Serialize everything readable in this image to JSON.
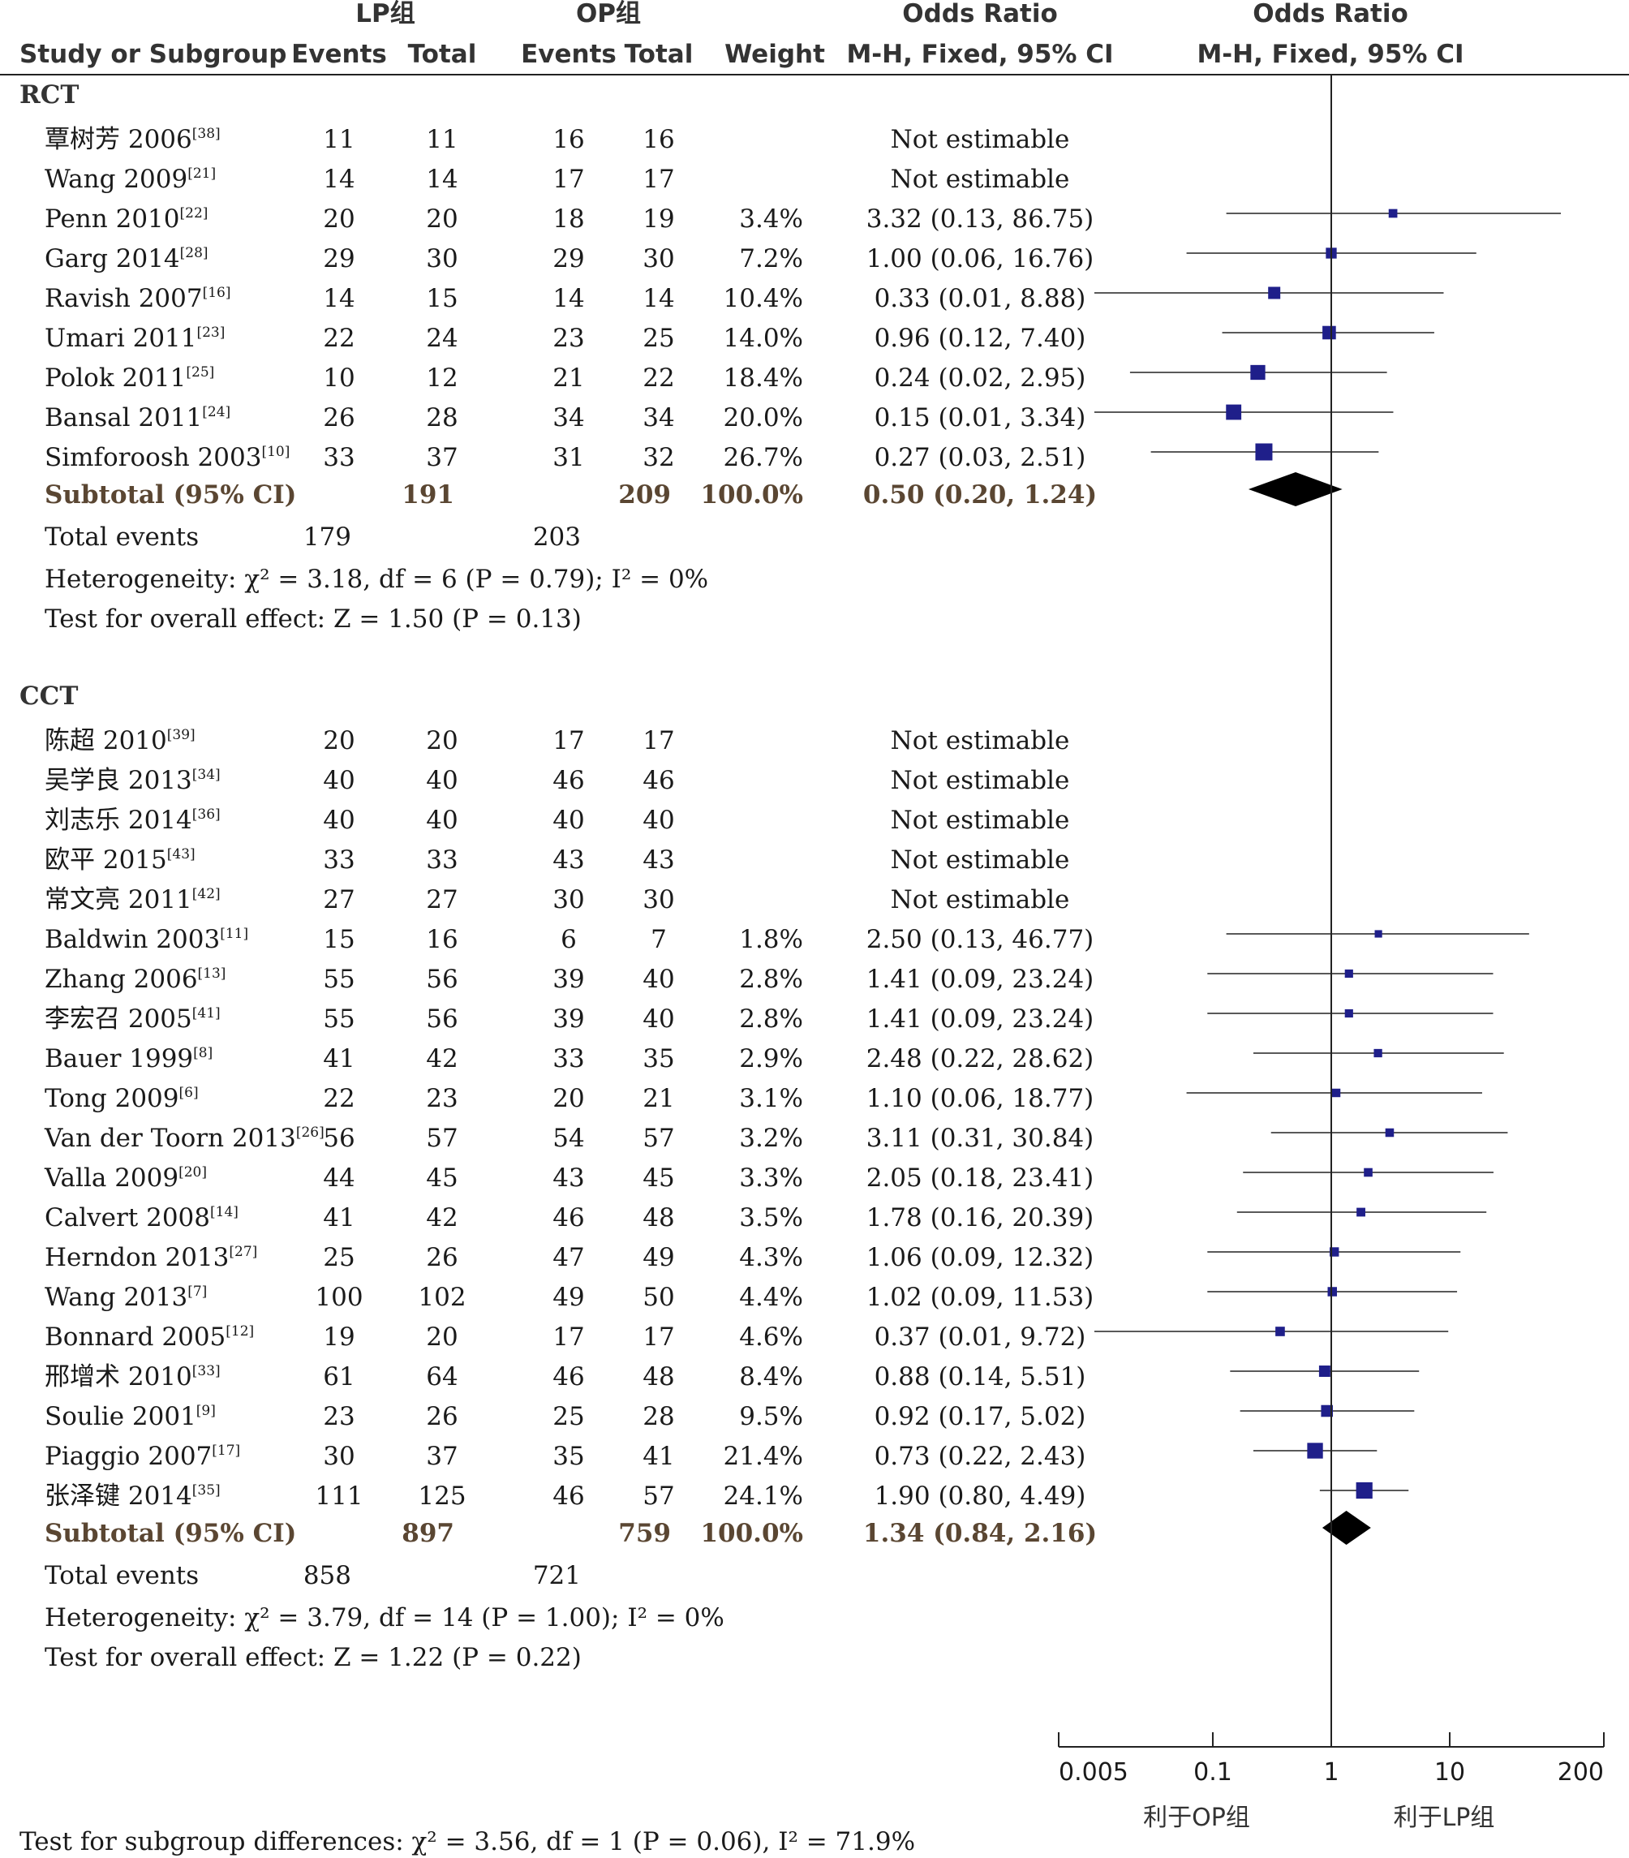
{
  "header": {
    "lp_group": "LP组",
    "op_group": "OP组",
    "odds_ratio_col": "Odds Ratio",
    "odds_ratio_plot": "Odds Ratio",
    "study_col": "Study or Subgroup",
    "events_lp": "Events",
    "total_lp": "Total",
    "events_op": "Events",
    "total_op": "Total",
    "weight": "Weight",
    "method_col": "M-H, Fixed, 95% CI",
    "method_plot": "M-H, Fixed, 95% CI"
  },
  "favours": {
    "left": "利于OP组",
    "right": "利于LP组"
  },
  "footer": {
    "test_subgroup": "Test for subgroup differences: χ² = 3.56, df = 1 (P = 0.06), I² = 71.9%"
  },
  "chart_data": {
    "type": "forest",
    "x_scale": "log",
    "xlim": [
      0.005,
      200
    ],
    "x_ticks": [
      "0.005",
      "0.1",
      "1",
      "10",
      "200"
    ],
    "reference_line": 1,
    "marker_color": "#1f1f8a",
    "groups": [
      {
        "name": "RCT",
        "studies": [
          {
            "study": "覃树芳 2006",
            "ref": "[38]",
            "lp_events": "11",
            "lp_total": "11",
            "op_events": "16",
            "op_total": "16",
            "weight": "",
            "ci_text": "Not estimable",
            "or": null,
            "lo": null,
            "hi": null
          },
          {
            "study": "Wang 2009",
            "ref": "[21]",
            "lp_events": "14",
            "lp_total": "14",
            "op_events": "17",
            "op_total": "17",
            "weight": "",
            "ci_text": "Not estimable",
            "or": null,
            "lo": null,
            "hi": null
          },
          {
            "study": "Penn 2010",
            "ref": "[22]",
            "lp_events": "20",
            "lp_total": "20",
            "op_events": "18",
            "op_total": "19",
            "weight": "3.4%",
            "ci_text": "3.32 (0.13, 86.75)",
            "or": 3.32,
            "lo": 0.13,
            "hi": 86.75
          },
          {
            "study": "Garg 2014",
            "ref": "[28]",
            "lp_events": "29",
            "lp_total": "30",
            "op_events": "29",
            "op_total": "30",
            "weight": "7.2%",
            "ci_text": "1.00 (0.06, 16.76)",
            "or": 1.0,
            "lo": 0.06,
            "hi": 16.76
          },
          {
            "study": "Ravish 2007",
            "ref": "[16]",
            "lp_events": "14",
            "lp_total": "15",
            "op_events": "14",
            "op_total": "14",
            "weight": "10.4%",
            "ci_text": "0.33 (0.01, 8.88)",
            "or": 0.33,
            "lo": 0.01,
            "hi": 8.88
          },
          {
            "study": "Umari 2011",
            "ref": "[23]",
            "lp_events": "22",
            "lp_total": "24",
            "op_events": "23",
            "op_total": "25",
            "weight": "14.0%",
            "ci_text": "0.96 (0.12, 7.40)",
            "or": 0.96,
            "lo": 0.12,
            "hi": 7.4
          },
          {
            "study": "Polok 2011",
            "ref": "[25]",
            "lp_events": "10",
            "lp_total": "12",
            "op_events": "21",
            "op_total": "22",
            "weight": "18.4%",
            "ci_text": "0.24 (0.02, 2.95)",
            "or": 0.24,
            "lo": 0.02,
            "hi": 2.95
          },
          {
            "study": "Bansal 2011",
            "ref": "[24]",
            "lp_events": "26",
            "lp_total": "28",
            "op_events": "34",
            "op_total": "34",
            "weight": "20.0%",
            "ci_text": "0.15 (0.01, 3.34)",
            "or": 0.15,
            "lo": 0.01,
            "hi": 3.34
          },
          {
            "study": "Simforoosh 2003",
            "ref": "[10]",
            "lp_events": "33",
            "lp_total": "37",
            "op_events": "31",
            "op_total": "32",
            "weight": "26.7%",
            "ci_text": "0.27 (0.03, 2.51)",
            "or": 0.27,
            "lo": 0.03,
            "hi": 2.51
          }
        ],
        "subtotal": {
          "label": "Subtotal (95% CI)",
          "lp_total": "191",
          "op_total": "209",
          "weight": "100.0%",
          "ci_text": "0.50 (0.20, 1.24)",
          "or": 0.5,
          "lo": 0.2,
          "hi": 1.24
        },
        "total_events": {
          "label": "Total events",
          "lp": "179",
          "op": "203"
        },
        "heterogeneity": "Heterogeneity: χ² = 3.18, df = 6 (P = 0.79); I² = 0%",
        "overall_effect": "Test for overall effect: Z = 1.50 (P = 0.13)"
      },
      {
        "name": "CCT",
        "studies": [
          {
            "study": "陈超 2010",
            "ref": "[39]",
            "lp_events": "20",
            "lp_total": "20",
            "op_events": "17",
            "op_total": "17",
            "weight": "",
            "ci_text": "Not estimable",
            "or": null,
            "lo": null,
            "hi": null
          },
          {
            "study": "吴学良 2013",
            "ref": "[34]",
            "lp_events": "40",
            "lp_total": "40",
            "op_events": "46",
            "op_total": "46",
            "weight": "",
            "ci_text": "Not estimable",
            "or": null,
            "lo": null,
            "hi": null
          },
          {
            "study": "刘志乐 2014",
            "ref": "[36]",
            "lp_events": "40",
            "lp_total": "40",
            "op_events": "40",
            "op_total": "40",
            "weight": "",
            "ci_text": "Not estimable",
            "or": null,
            "lo": null,
            "hi": null
          },
          {
            "study": "欧平 2015",
            "ref": "[43]",
            "lp_events": "33",
            "lp_total": "33",
            "op_events": "43",
            "op_total": "43",
            "weight": "",
            "ci_text": "Not estimable",
            "or": null,
            "lo": null,
            "hi": null
          },
          {
            "study": "常文亮 2011",
            "ref": "[42]",
            "lp_events": "27",
            "lp_total": "27",
            "op_events": "30",
            "op_total": "30",
            "weight": "",
            "ci_text": "Not estimable",
            "or": null,
            "lo": null,
            "hi": null
          },
          {
            "study": "Baldwin 2003",
            "ref": "[11]",
            "lp_events": "15",
            "lp_total": "16",
            "op_events": "6",
            "op_total": "7",
            "weight": "1.8%",
            "ci_text": "2.50 (0.13, 46.77)",
            "or": 2.5,
            "lo": 0.13,
            "hi": 46.77
          },
          {
            "study": "Zhang 2006",
            "ref": "[13]",
            "lp_events": "55",
            "lp_total": "56",
            "op_events": "39",
            "op_total": "40",
            "weight": "2.8%",
            "ci_text": "1.41 (0.09, 23.24)",
            "or": 1.41,
            "lo": 0.09,
            "hi": 23.24
          },
          {
            "study": "李宏召 2005",
            "ref": "[41]",
            "lp_events": "55",
            "lp_total": "56",
            "op_events": "39",
            "op_total": "40",
            "weight": "2.8%",
            "ci_text": "1.41 (0.09, 23.24)",
            "or": 1.41,
            "lo": 0.09,
            "hi": 23.24
          },
          {
            "study": "Bauer 1999",
            "ref": "[8]",
            "lp_events": "41",
            "lp_total": "42",
            "op_events": "33",
            "op_total": "35",
            "weight": "2.9%",
            "ci_text": "2.48 (0.22, 28.62)",
            "or": 2.48,
            "lo": 0.22,
            "hi": 28.62
          },
          {
            "study": "Tong 2009",
            "ref": "[6]",
            "lp_events": "22",
            "lp_total": "23",
            "op_events": "20",
            "op_total": "21",
            "weight": "3.1%",
            "ci_text": "1.10 (0.06, 18.77)",
            "or": 1.1,
            "lo": 0.06,
            "hi": 18.77
          },
          {
            "study": "Van der Toorn 2013",
            "ref": "[26]",
            "lp_events": "56",
            "lp_total": "57",
            "op_events": "54",
            "op_total": "57",
            "weight": "3.2%",
            "ci_text": "3.11 (0.31, 30.84)",
            "or": 3.11,
            "lo": 0.31,
            "hi": 30.84
          },
          {
            "study": "Valla 2009",
            "ref": "[20]",
            "lp_events": "44",
            "lp_total": "45",
            "op_events": "43",
            "op_total": "45",
            "weight": "3.3%",
            "ci_text": "2.05 (0.18, 23.41)",
            "or": 2.05,
            "lo": 0.18,
            "hi": 23.41
          },
          {
            "study": "Calvert 2008",
            "ref": "[14]",
            "lp_events": "41",
            "lp_total": "42",
            "op_events": "46",
            "op_total": "48",
            "weight": "3.5%",
            "ci_text": "1.78 (0.16, 20.39)",
            "or": 1.78,
            "lo": 0.16,
            "hi": 20.39
          },
          {
            "study": "Herndon 2013",
            "ref": "[27]",
            "lp_events": "25",
            "lp_total": "26",
            "op_events": "47",
            "op_total": "49",
            "weight": "4.3%",
            "ci_text": "1.06 (0.09, 12.32)",
            "or": 1.06,
            "lo": 0.09,
            "hi": 12.32
          },
          {
            "study": "Wang 2013",
            "ref": "[7]",
            "lp_events": "100",
            "lp_total": "102",
            "op_events": "49",
            "op_total": "50",
            "weight": "4.4%",
            "ci_text": "1.02 (0.09, 11.53)",
            "or": 1.02,
            "lo": 0.09,
            "hi": 11.53
          },
          {
            "study": "Bonnard 2005",
            "ref": "[12]",
            "lp_events": "19",
            "lp_total": "20",
            "op_events": "17",
            "op_total": "17",
            "weight": "4.6%",
            "ci_text": "0.37 (0.01, 9.72)",
            "or": 0.37,
            "lo": 0.01,
            "hi": 9.72
          },
          {
            "study": "邢增术 2010",
            "ref": "[33]",
            "lp_events": "61",
            "lp_total": "64",
            "op_events": "46",
            "op_total": "48",
            "weight": "8.4%",
            "ci_text": "0.88 (0.14, 5.51)",
            "or": 0.88,
            "lo": 0.14,
            "hi": 5.51
          },
          {
            "study": "Soulie 2001",
            "ref": "[9]",
            "lp_events": "23",
            "lp_total": "26",
            "op_events": "25",
            "op_total": "28",
            "weight": "9.5%",
            "ci_text": "0.92 (0.17, 5.02)",
            "or": 0.92,
            "lo": 0.17,
            "hi": 5.02
          },
          {
            "study": "Piaggio 2007",
            "ref": "[17]",
            "lp_events": "30",
            "lp_total": "37",
            "op_events": "35",
            "op_total": "41",
            "weight": "21.4%",
            "ci_text": "0.73 (0.22, 2.43)",
            "or": 0.73,
            "lo": 0.22,
            "hi": 2.43
          },
          {
            "study": "张泽键 2014",
            "ref": "[35]",
            "lp_events": "111",
            "lp_total": "125",
            "op_events": "46",
            "op_total": "57",
            "weight": "24.1%",
            "ci_text": "1.90 (0.80, 4.49)",
            "or": 1.9,
            "lo": 0.8,
            "hi": 4.49
          }
        ],
        "subtotal": {
          "label": "Subtotal (95% CI)",
          "lp_total": "897",
          "op_total": "759",
          "weight": "100.0%",
          "ci_text": "1.34 (0.84, 2.16)",
          "or": 1.34,
          "lo": 0.84,
          "hi": 2.16
        },
        "total_events": {
          "label": "Total events",
          "lp": "858",
          "op": "721"
        },
        "heterogeneity": "Heterogeneity: χ² = 3.79, df = 14 (P = 1.00); I² = 0%",
        "overall_effect": "Test for overall effect: Z = 1.22 (P = 0.22)"
      }
    ]
  }
}
